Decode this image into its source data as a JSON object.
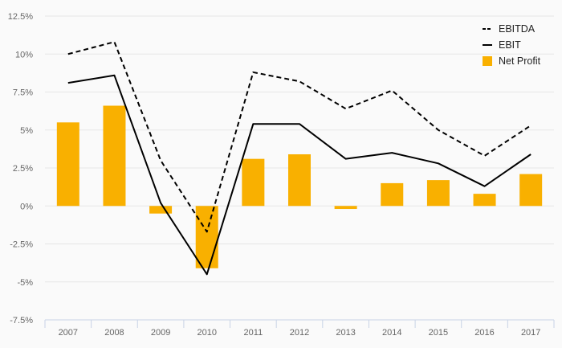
{
  "chart_data": {
    "type": "bar",
    "categories": [
      "2007",
      "2008",
      "2009",
      "2010",
      "2011",
      "2012",
      "2013",
      "2014",
      "2015",
      "2016",
      "2017"
    ],
    "series": [
      {
        "name": "EBITDA",
        "type": "line",
        "style": "dashed",
        "color": "#000000",
        "values": [
          10.0,
          10.8,
          3.0,
          -1.7,
          8.8,
          8.2,
          6.4,
          7.6,
          5.0,
          3.3,
          5.3
        ]
      },
      {
        "name": "EBIT",
        "type": "line",
        "style": "solid",
        "color": "#000000",
        "values": [
          8.1,
          8.6,
          0.2,
          -4.5,
          5.4,
          5.4,
          3.1,
          3.5,
          2.8,
          1.3,
          3.4
        ]
      },
      {
        "name": "Net Profit",
        "type": "bar",
        "color": "#f9b000",
        "values": [
          5.5,
          6.6,
          -0.5,
          -4.1,
          3.1,
          3.4,
          -0.2,
          1.5,
          1.7,
          0.8,
          2.1
        ]
      }
    ],
    "ylim": [
      -7.5,
      12.5
    ],
    "yticks": [
      "12.5%",
      "10%",
      "7.5%",
      "5%",
      "2.5%",
      "0%",
      "-2.5%",
      "-5%",
      "-7.5%"
    ],
    "ytick_values": [
      12.5,
      10,
      7.5,
      5,
      2.5,
      0,
      -2.5,
      -5,
      -7.5
    ],
    "grid": true,
    "legend_position": "top-right",
    "title": "",
    "xlabel": "",
    "ylabel": ""
  }
}
